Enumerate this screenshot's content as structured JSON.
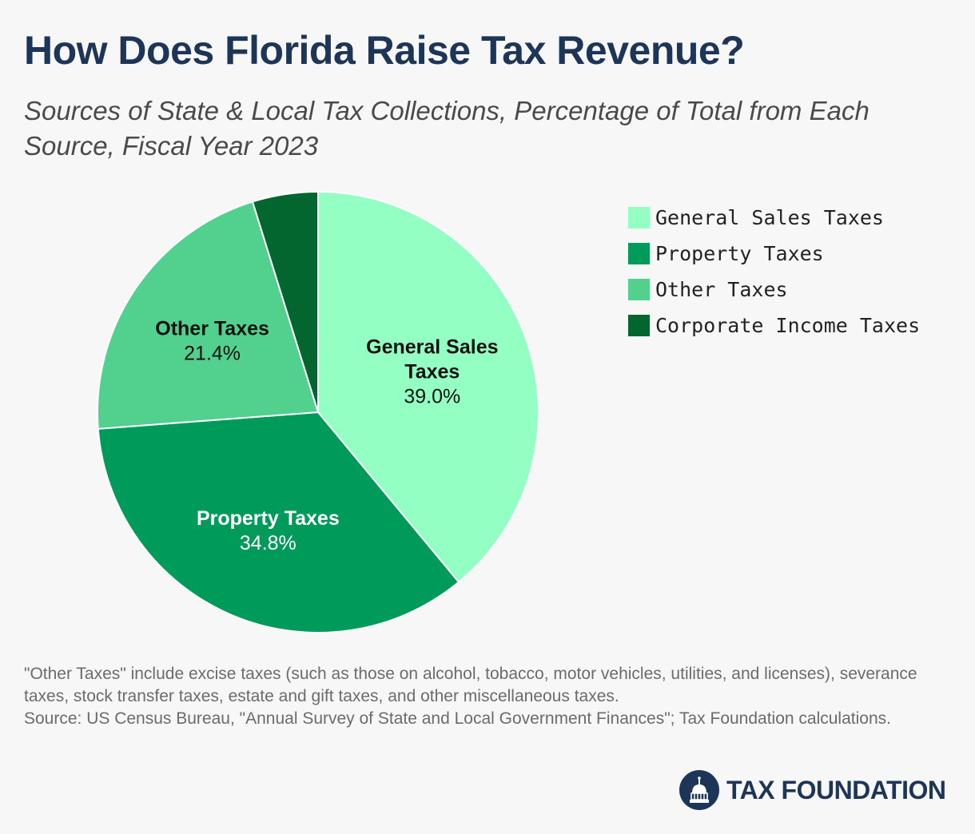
{
  "header": {
    "title": "How Does Florida Raise Tax Revenue?",
    "subtitle": "Sources of State & Local Tax Collections, Percentage of Total from Each Source, Fiscal Year 2023"
  },
  "chart_data": {
    "type": "pie",
    "title": "How Does Florida Raise Tax Revenue?",
    "subtitle": "Sources of State & Local Tax Collections, Percentage of Total from Each Source, Fiscal Year 2023",
    "legend_position": "right",
    "categories": [
      "General Sales Taxes",
      "Property Taxes",
      "Other Taxes",
      "Corporate Income Taxes"
    ],
    "values": [
      39.0,
      34.8,
      21.4,
      4.8
    ],
    "slice_labels": [
      {
        "name_lines": [
          "General Sales",
          "Taxes"
        ],
        "value_text": "39.0%"
      },
      {
        "name_lines": [
          "Property Taxes"
        ],
        "value_text": "34.8%"
      },
      {
        "name_lines": [
          "Other Taxes"
        ],
        "value_text": "21.4%"
      },
      {
        "name_lines": [],
        "value_text": ""
      }
    ],
    "colors": [
      "#94ffc3",
      "#009a5b",
      "#51d08e",
      "#02662e"
    ],
    "label_colors": [
      "#111111",
      "#ffffff",
      "#111111",
      "#ffffff"
    ]
  },
  "footer": {
    "note": "\"Other Taxes\" include excise taxes (such as those on alcohol, tobacco, motor vehicles, utilities, and licenses), severance taxes, stock transfer taxes, estate and gift taxes, and other miscellaneous taxes.",
    "source": "Source: US Census Bureau, \"Annual Survey of State and Local Government Finances\"; Tax Foundation calculations."
  },
  "logo": {
    "text": "TAX FOUNDATION",
    "icon": "capitol-dome-icon",
    "color": "#1d3557"
  }
}
